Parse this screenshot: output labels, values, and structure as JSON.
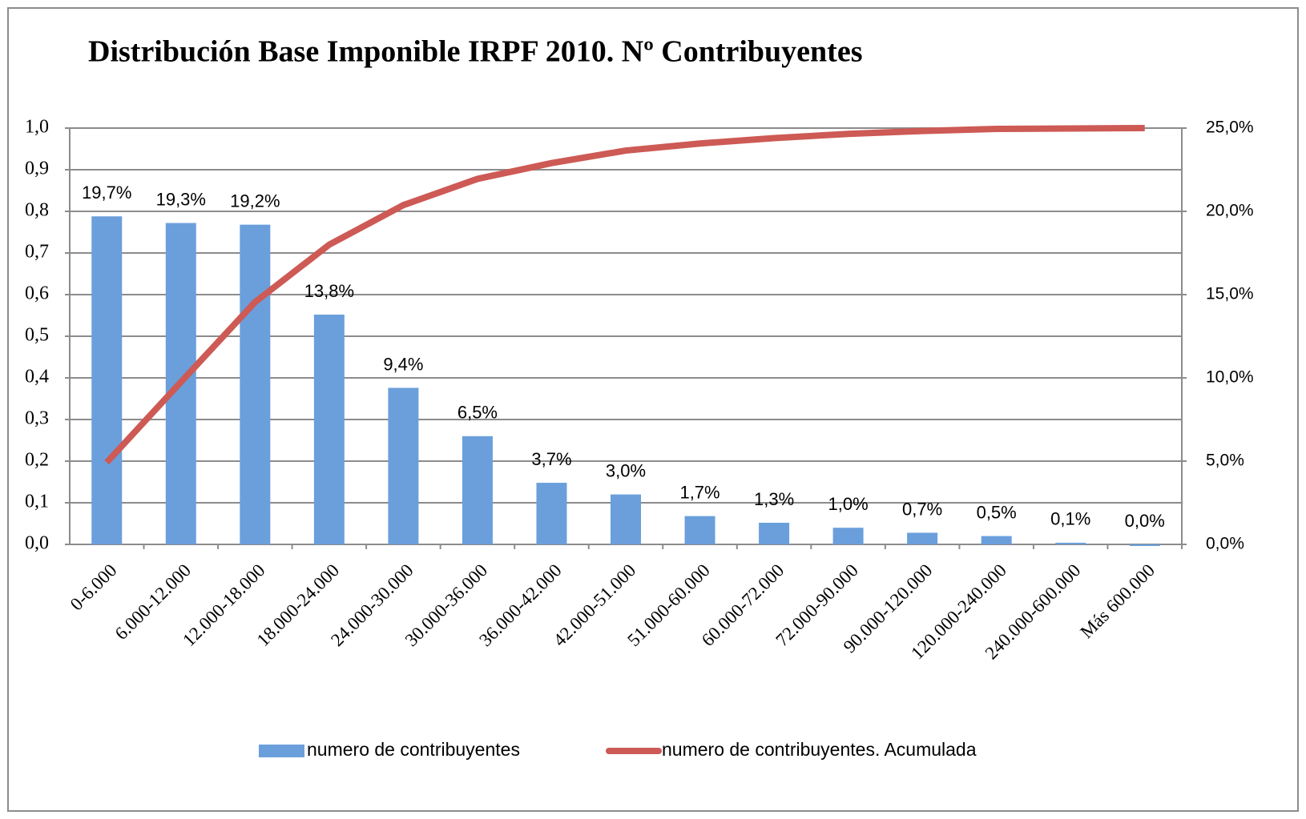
{
  "chart_data": {
    "type": "bar",
    "title": "Distribución Base Imponible IRPF 2010. Nº Contribuyentes",
    "categories": [
      "0-6.000",
      "6.000-12.000",
      "12.000-18.000",
      "18.000-24.000",
      "24.000-30.000",
      "30.000-36.000",
      "36.000-42.000",
      "42.000-51.000",
      "51.000-60.000",
      "60.000-72.000",
      "72.000-90.000",
      "90.000-120.000",
      "120.000-240.000",
      "240.000-600.000",
      "Más 600.000"
    ],
    "series": [
      {
        "name": "numero de contribuyentes",
        "type": "bar",
        "axis": "y2",
        "color": "#6a9fdc",
        "values": [
          19.7,
          19.3,
          19.2,
          13.8,
          9.4,
          6.5,
          3.7,
          3.0,
          1.7,
          1.3,
          1.0,
          0.7,
          0.5,
          0.1,
          0.0
        ],
        "value_labels": [
          "19,7%",
          "19,3%",
          "19,2%",
          "13,8%",
          "9,4%",
          "6,5%",
          "3,7%",
          "3,0%",
          "1,7%",
          "1,3%",
          "1,0%",
          "0,7%",
          "0,5%",
          "0,1%",
          "0,0%"
        ]
      },
      {
        "name": "numero de contribuyentes. Acumulada",
        "type": "line",
        "color": "#cd5a55",
        "values": [
          0.197,
          0.39,
          0.582,
          0.72,
          0.815,
          0.878,
          0.916,
          0.946,
          0.963,
          0.976,
          0.986,
          0.993,
          0.998,
          0.999,
          1.0
        ]
      }
    ],
    "ylim": [
      0,
      1
    ],
    "yticks": [
      {
        "value": 0,
        "label": "0,0"
      },
      {
        "value": 0.1,
        "label": "0,1"
      },
      {
        "value": 0.2,
        "label": "0,2"
      },
      {
        "value": 0.3,
        "label": "0,3"
      },
      {
        "value": 0.4,
        "label": "0,4"
      },
      {
        "value": 0.5,
        "label": "0,5"
      },
      {
        "value": 0.6,
        "label": "0,6"
      },
      {
        "value": 0.7,
        "label": "0,7"
      },
      {
        "value": 0.8,
        "label": "0,8"
      },
      {
        "value": 0.9,
        "label": "0,9"
      },
      {
        "value": 1,
        "label": "1,0"
      }
    ],
    "y2lim": [
      0,
      25
    ],
    "y2ticks": [
      {
        "value": 0,
        "label": "0,0%"
      },
      {
        "value": 5,
        "label": "5,0%"
      },
      {
        "value": 10,
        "label": "10,0%"
      },
      {
        "value": 15,
        "label": "15,0%"
      },
      {
        "value": 20,
        "label": "20,0%"
      },
      {
        "value": 25,
        "label": "25,0%"
      }
    ],
    "grid": true,
    "legend": "bottom"
  }
}
